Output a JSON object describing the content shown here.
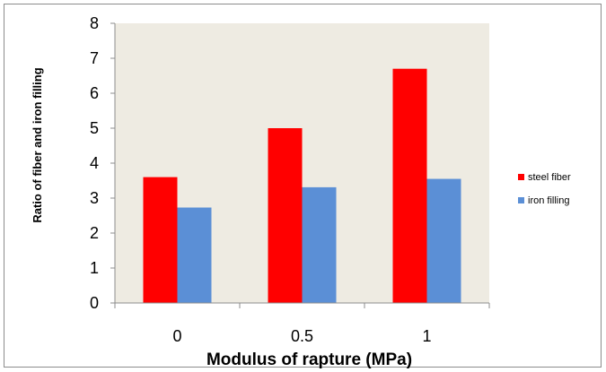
{
  "chart_data": {
    "type": "bar",
    "title": "",
    "xlabel": "Modulus of rapture (MPa)",
    "ylabel": "Ratio of fiber and iron filling",
    "categories": [
      "0",
      "0.5",
      "1"
    ],
    "ylim": [
      0,
      8
    ],
    "yticks": [
      "0",
      "1",
      "2",
      "3",
      "4",
      "5",
      "6",
      "7",
      "8"
    ],
    "grid": false,
    "legend_position": "right",
    "series": [
      {
        "name": "steel fiber",
        "color": "#ff0000",
        "values": [
          3.6,
          5.0,
          6.7
        ]
      },
      {
        "name": "iron filling",
        "color": "#5b8fd6",
        "values": [
          2.73,
          3.31,
          3.55
        ]
      }
    ],
    "plot_background": "#eeebe2"
  }
}
